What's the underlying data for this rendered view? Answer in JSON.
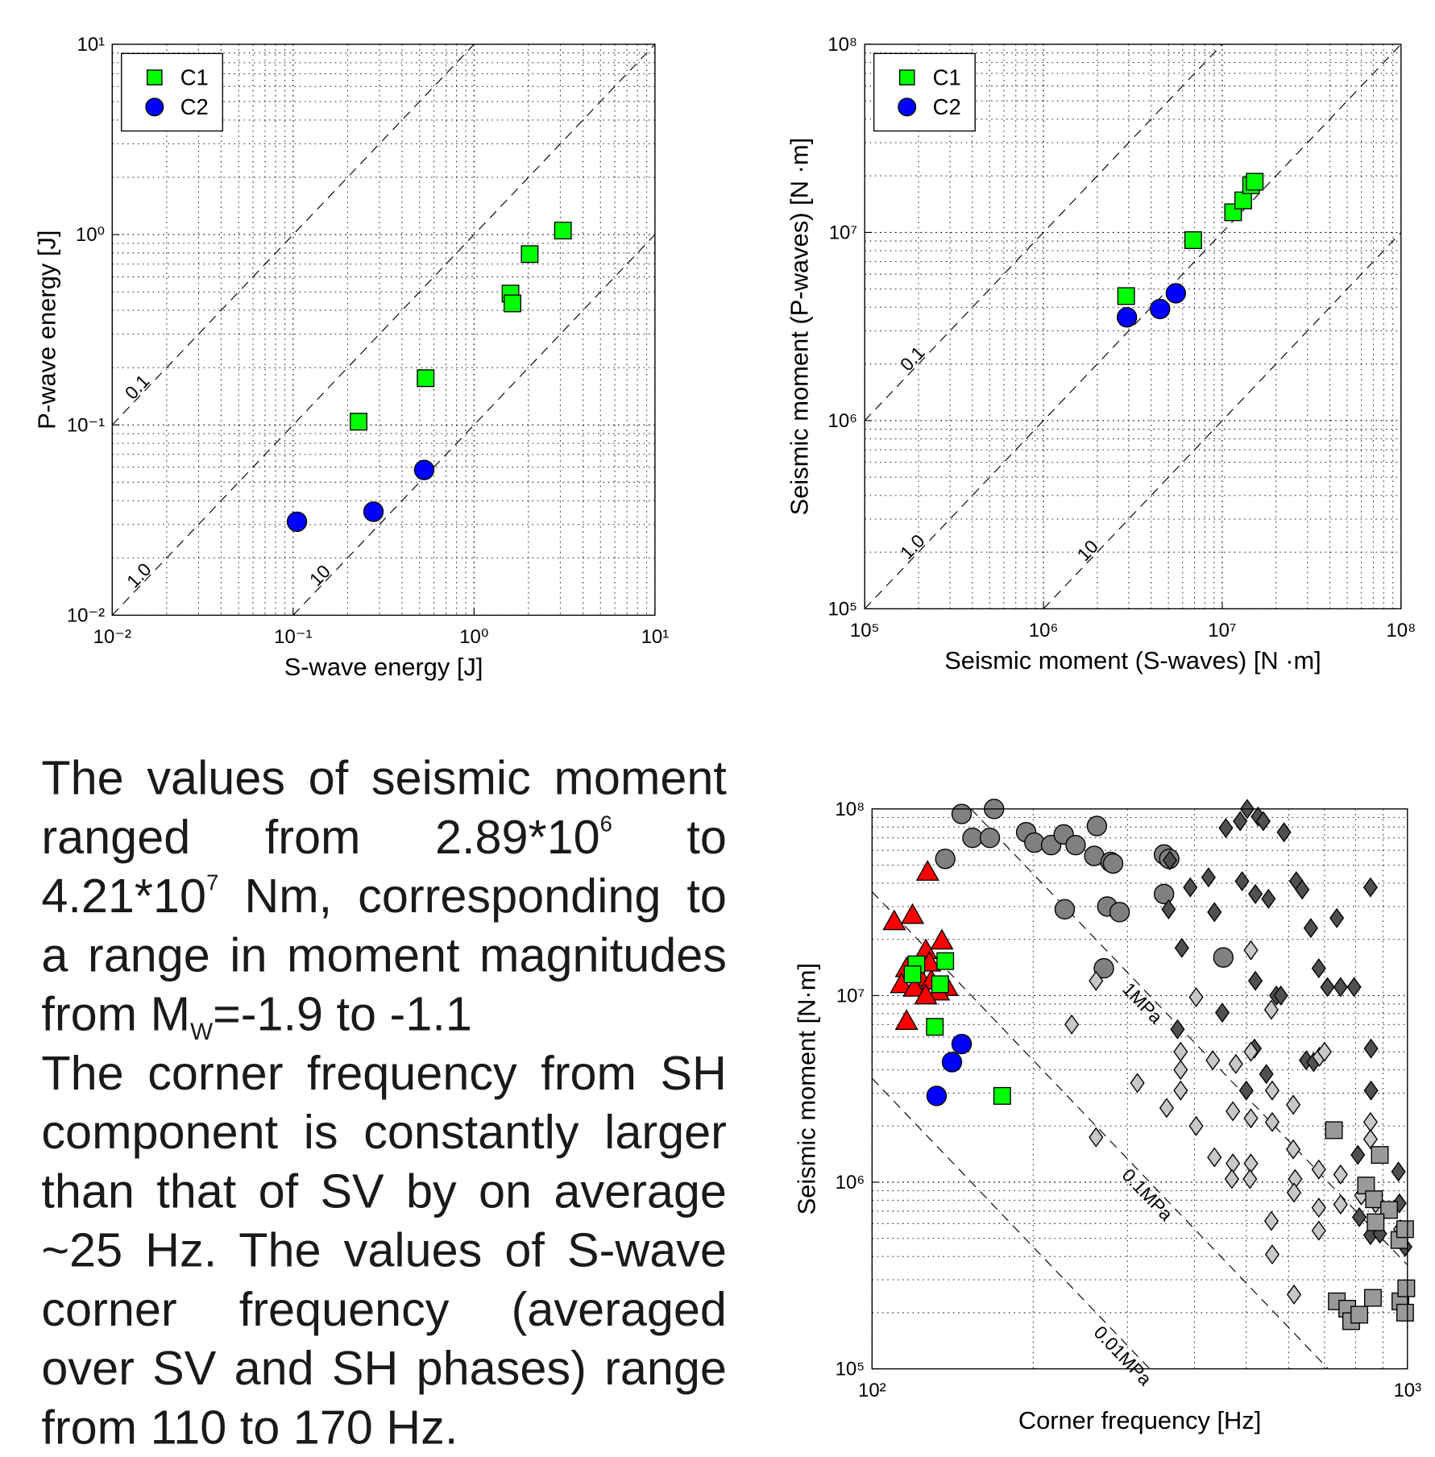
{
  "chart_data": [
    {
      "type": "scatter",
      "xlabel": "S-wave energy [J]",
      "ylabel": "P-wave energy [J]",
      "xlog": true,
      "ylog": true,
      "grid": true,
      "legend": "upper left",
      "xlim": [
        0.01,
        10
      ],
      "ylim": [
        0.01,
        10
      ],
      "xticks": [
        {
          "value": 0.01,
          "label": "10⁻²"
        },
        {
          "value": 0.1,
          "label": "10⁻¹"
        },
        {
          "value": 1,
          "label": "10⁰"
        },
        {
          "value": 10,
          "label": "10¹"
        }
      ],
      "yticks": [
        {
          "value": 0.01,
          "label": "10⁻²"
        },
        {
          "value": 0.1,
          "label": "10⁻¹"
        },
        {
          "value": 1,
          "label": "10⁰"
        },
        {
          "value": 10,
          "label": "10¹"
        }
      ],
      "xminorticks": [
        0.02,
        0.03,
        0.04,
        0.05,
        0.06,
        0.07,
        0.08,
        0.09,
        0.2,
        0.3,
        0.4,
        0.5,
        0.6,
        0.7,
        0.8,
        0.9,
        2,
        3,
        4,
        5,
        6,
        7,
        8,
        9
      ],
      "yminorticks": [
        0.02,
        0.03,
        0.04,
        0.05,
        0.06,
        0.07,
        0.08,
        0.09,
        0.2,
        0.3,
        0.4,
        0.5,
        0.6,
        0.7,
        0.8,
        0.9,
        2,
        3,
        4,
        5,
        6,
        7,
        8,
        9
      ],
      "ref_lines": [
        {
          "label": "0.1",
          "x": [
            0.01,
            1
          ],
          "y": [
            0.1,
            10
          ]
        },
        {
          "label": "1.0",
          "x": [
            0.01,
            10
          ],
          "y": [
            0.01,
            10
          ]
        },
        {
          "label": "10",
          "x": [
            0.1,
            10
          ],
          "y": [
            0.01,
            1
          ]
        }
      ],
      "series": [
        {
          "name": "C1",
          "color": "#00ff00",
          "marker": "square",
          "x": [
            0.23,
            0.54,
            1.59,
            1.63,
            2.03,
            3.1
          ],
          "values": [
            0.104,
            0.176,
            0.49,
            0.435,
            0.79,
            1.05
          ]
        },
        {
          "name": "C2",
          "color": "#0000ff",
          "marker": "circle",
          "x": [
            0.105,
            0.278,
            0.53
          ],
          "values": [
            0.031,
            0.035,
            0.058
          ]
        }
      ]
    },
    {
      "type": "scatter",
      "xlabel": "Seismic moment (S-waves) [N ·m]",
      "ylabel": "Seismic moment (P-waves) [N ·m]",
      "xlog": true,
      "ylog": true,
      "grid": true,
      "legend": "upper left",
      "xlim": [
        100000,
        100000000
      ],
      "ylim": [
        100000,
        100000000
      ],
      "xticks": [
        {
          "value": 100000,
          "label": "10⁵"
        },
        {
          "value": 1000000,
          "label": "10⁶"
        },
        {
          "value": 10000000,
          "label": "10⁷"
        },
        {
          "value": 100000000,
          "label": "10⁸"
        }
      ],
      "yticks": [
        {
          "value": 100000,
          "label": "10⁵"
        },
        {
          "value": 1000000,
          "label": "10⁶"
        },
        {
          "value": 10000000,
          "label": "10⁷"
        },
        {
          "value": 100000000,
          "label": "10⁸"
        }
      ],
      "xminorticks": [
        200000.0,
        300000.0,
        400000.0,
        500000.0,
        600000.0,
        700000.0,
        800000.0,
        900000.0,
        2000000.0,
        3000000.0,
        4000000.0,
        5000000.0,
        6000000.0,
        7000000.0,
        8000000.0,
        9000000.0,
        20000000.0,
        30000000.0,
        40000000.0,
        50000000.0,
        60000000.0,
        70000000.0,
        80000000.0,
        90000000.0
      ],
      "yminorticks": [
        200000.0,
        300000.0,
        400000.0,
        500000.0,
        600000.0,
        700000.0,
        800000.0,
        900000.0,
        2000000.0,
        3000000.0,
        4000000.0,
        5000000.0,
        6000000.0,
        7000000.0,
        8000000.0,
        9000000.0,
        20000000.0,
        30000000.0,
        40000000.0,
        50000000.0,
        60000000.0,
        70000000.0,
        80000000.0,
        90000000.0
      ],
      "ref_lines": [
        {
          "label": "0.1",
          "x": [
            100000,
            10000000
          ],
          "y": [
            1000000,
            100000000
          ]
        },
        {
          "label": "1.0",
          "x": [
            100000,
            100000000
          ],
          "y": [
            100000,
            100000000
          ]
        },
        {
          "label": "10",
          "x": [
            1000000,
            100000000
          ],
          "y": [
            100000,
            10000000
          ]
        }
      ],
      "series": [
        {
          "name": "C1",
          "color": "#00ff00",
          "marker": "square",
          "x": [
            2900000.0,
            6880000.0,
            11500000.0,
            13100000.0,
            14500000.0,
            15200000.0
          ],
          "values": [
            4590000.0,
            9100000.0,
            12800000.0,
            14800000.0,
            17800000.0,
            18600000.0
          ]
        },
        {
          "name": "C2",
          "color": "#0000ff",
          "marker": "circle",
          "x": [
            2930000.0,
            4490000.0,
            5500000.0
          ],
          "values": [
            3540000.0,
            3920000.0,
            4750000.0
          ]
        }
      ]
    },
    {
      "type": "scatter",
      "xlabel": "Corner frequency [Hz]",
      "ylabel": "Seismic moment [N·m]",
      "xlog": true,
      "ylog": true,
      "grid": true,
      "xlim": [
        100,
        1000
      ],
      "ylim": [
        100000,
        100000000
      ],
      "xticks": [
        {
          "value": 100,
          "label": "10²"
        },
        {
          "value": 1000,
          "label": "10³"
        }
      ],
      "yticks": [
        {
          "value": 100000,
          "label": "10⁵"
        },
        {
          "value": 1000000,
          "label": "10⁶"
        },
        {
          "value": 10000000,
          "label": "10⁷"
        },
        {
          "value": 100000000,
          "label": "10⁸"
        }
      ],
      "xminorticks": [
        200,
        300,
        400,
        500,
        600,
        700,
        800,
        900
      ],
      "yminorticks": [
        200000.0,
        300000.0,
        400000.0,
        500000.0,
        600000.0,
        700000.0,
        800000.0,
        900000.0,
        2000000.0,
        3000000.0,
        4000000.0,
        5000000.0,
        6000000.0,
        7000000.0,
        8000000.0,
        9000000.0,
        20000000.0,
        30000000.0,
        40000000.0,
        50000000.0,
        60000000.0,
        70000000.0,
        80000000.0,
        90000000.0
      ],
      "ref_lines": [
        {
          "label": "1MPa",
          "x": [
            153,
            1000
          ],
          "y": [
            100000000,
            360000
          ]
        },
        {
          "label": "0.1MPa",
          "x": [
            100,
            711
          ],
          "y": [
            36000000,
            100000
          ]
        },
        {
          "label": "0.01MPa",
          "x": [
            100,
            330
          ],
          "y": [
            3600000,
            100000
          ]
        }
      ],
      "series": [
        {
          "color": "#ff0000",
          "marker": "triangle",
          "x": [
            127,
            110,
            119,
            135,
            126,
            116,
            123,
            113.5,
            120,
            129,
            138,
            133,
            126,
            116,
            128
          ],
          "values": [
            46000000.0,
            25000000.0,
            27000000.0,
            19700000.0,
            17500000.0,
            14000000.0,
            12500000.0,
            11500000.0,
            11000000.0,
            12000000.0,
            11100000.0,
            10500000.0,
            10000000.0,
            7300000.0,
            15000000.0
          ]
        },
        {
          "color": "#00ff00",
          "marker": "square",
          "x": [
            121,
            119,
            137,
            134,
            131,
            175
          ],
          "values": [
            14700000.0,
            13000000.0,
            15300000.0,
            11500000.0,
            6800000.0,
            2900000.0
          ]
        },
        {
          "color": "#0000ff",
          "marker": "circle",
          "x": [
            147,
            141,
            132
          ],
          "values": [
            5500000.0,
            4400000.0,
            2900000.0
          ]
        },
        {
          "color": "#808080",
          "marker": "circle",
          "x": [
            147,
            169,
            154,
            166,
            194,
            201,
            216,
            228,
            240,
            263,
            260,
            279,
            282,
            137,
            229,
            275,
            290,
            351,
            359,
            351,
            271,
            453
          ],
          "values": [
            94000000.0,
            100000000.0,
            70000000.0,
            70000000.0,
            75000000.0,
            66000000.0,
            64000000.0,
            73000000.0,
            64000000.0,
            81000000.0,
            56000000.0,
            52000000.0,
            51000000.0,
            54000000.0,
            29000000.0,
            30000000.0,
            28000000.0,
            57000000.0,
            54000000.0,
            35000000.0,
            14000000.0,
            16000000.0
          ]
        },
        {
          "color": "#505050",
          "marker": "diamond",
          "x": [
            458,
            487,
            502,
            526,
            538,
            588,
            360,
            393,
            425,
            358,
            436,
            491,
            520,
            550,
            620,
            636,
            853,
            738,
            660,
            379,
            683,
            709,
            750,
            795,
            569,
            580,
            520,
            451,
            372,
            518,
            545,
            500,
            647,
            668,
            855,
            855,
            808,
            962,
            813,
            966,
            853,
            888,
            990
          ],
          "values": [
            79000000.0,
            86000000.0,
            100000000.0,
            91000000.0,
            86000000.0,
            75000000.0,
            53000000.0,
            38000000.0,
            43000000.0,
            29000000.0,
            28000000.0,
            41000000.0,
            35000000.0,
            33000000.0,
            41000000.0,
            37000000.0,
            38000000.0,
            26000000.0,
            23000000.0,
            18000000.0,
            14000000.0,
            11100000.0,
            11100000.0,
            11100000.0,
            10000000.0,
            10000000.0,
            12000000.0,
            8100000.0,
            6600000.0,
            5200000.0,
            3800000.0,
            3100000.0,
            4500000.0,
            4400000.0,
            5200000.0,
            3100000.0,
            1400000.0,
            1140000.0,
            650000.0,
            770000.0,
            520000.0,
            530000.0,
            450000.0
          ]
        },
        {
          "color": "#c8c8c8",
          "marker": "diamond",
          "x": [
            262,
            403,
            557,
            236,
            510,
            377,
            433,
            377,
            478,
            510,
            313,
            559,
            355,
            377,
            403,
            472,
            510,
            559,
            612,
            262,
            436,
            472,
            510,
            470,
            508,
            612,
            617,
            614,
            683,
            750,
            685,
            700,
            853,
            853,
            750,
            683,
            557,
            683,
            559,
            614,
            820,
            872,
            970
          ],
          "values": [
            12000000.0,
            9800000.0,
            8400000.0,
            7000000.0,
            17500000.0,
            5000000.0,
            4500000.0,
            4000000.0,
            4300000.0,
            5000000.0,
            3400000.0,
            3100000.0,
            2500000.0,
            3100000.0,
            2000000.0,
            2400000.0,
            2200000.0,
            2100000.0,
            2600000.0,
            1740000.0,
            1360000.0,
            1260000.0,
            1260000.0,
            1040000.0,
            1040000.0,
            1500000.0,
            1040000.0,
            880000.0,
            1170000.0,
            1100000.0,
            4700000.0,
            5000000.0,
            2100000.0,
            1700000.0,
            760000.0,
            730000.0,
            620000.0,
            550000.0,
            410000.0,
            250000.0,
            850000.0,
            770000.0,
            560000.0
          ]
        },
        {
          "color": "#999999",
          "marker": "square",
          "x": [
            729,
            888,
            837,
            866,
            924,
            872,
            966,
            990,
            738,
            772,
            785,
            813,
            862,
            970,
            995,
            990
          ],
          "values": [
            1900000.0,
            1400000.0,
            960000.0,
            810000.0,
            710000.0,
            610000.0,
            490000.0,
            560000.0,
            230000.0,
            210000.0,
            180000.0,
            195000.0,
            240000.0,
            230000.0,
            270000.0,
            200000.0
          ]
        }
      ]
    }
  ],
  "text": {
    "paragraphs": [
      [
        "The values of seismic moment ranged from 2.89*10",
        "6",
        " to 4.21*10",
        "7",
        " Nm, corresponding to a range in moment magnitudes from M",
        "W",
        "=-1.9 to -1.1"
      ],
      [
        "The corner frequency from SH component is constantly larger than that of SV by on average ~25 Hz. The values of S-wave corner frequency (averaged over SV and SH phases) range from 110 to 170 Hz."
      ]
    ]
  }
}
